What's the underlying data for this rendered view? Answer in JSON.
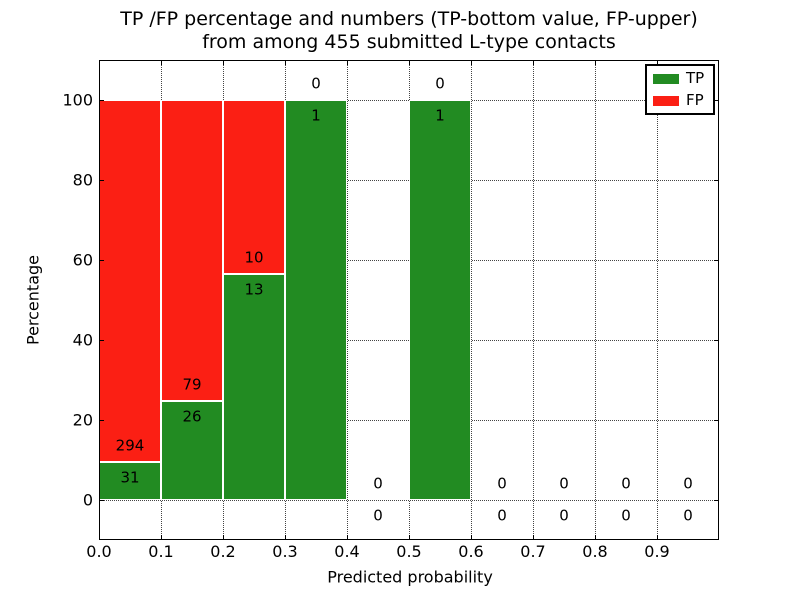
{
  "figure": {
    "title_line1": "TP /FP percentage and numbers (TP-bottom value, FP-upper)",
    "title_line2": "from among 455 submitted L-type contacts"
  },
  "axes": {
    "xlabel": "Predicted probability",
    "ylabel": "Percentage",
    "x_ticks": [
      "0.0",
      "0.1",
      "0.2",
      "0.3",
      "0.4",
      "0.5",
      "0.6",
      "0.7",
      "0.8",
      "0.9"
    ],
    "y_ticks": [
      "0",
      "20",
      "40",
      "60",
      "80",
      "100"
    ]
  },
  "legend": {
    "items": [
      {
        "label": "TP",
        "color": "#228b22"
      },
      {
        "label": "FP",
        "color": "#fb1f14"
      }
    ]
  },
  "chart_data": {
    "type": "bar",
    "stacked": true,
    "title": "TP /FP percentage and numbers (TP-bottom value, FP-upper) from among 455 submitted L-type contacts",
    "xlabel": "Predicted probability",
    "ylabel": "Percentage",
    "xlim": [
      0,
      1.0
    ],
    "ylim": [
      -10,
      110
    ],
    "grid": true,
    "legend_position": "upper right",
    "total_contacts": 455,
    "bin_width": 0.1,
    "bins_start": [
      0.0,
      0.1,
      0.2,
      0.3,
      0.4,
      0.5,
      0.6,
      0.7,
      0.8,
      0.9
    ],
    "series": [
      {
        "name": "TP",
        "color": "#228b22",
        "counts": [
          31,
          26,
          13,
          1,
          0,
          1,
          0,
          0,
          0,
          0
        ],
        "pct": [
          9.538,
          24.762,
          56.522,
          100,
          0,
          100,
          0,
          0,
          0,
          0
        ]
      },
      {
        "name": "FP",
        "color": "#fb1f14",
        "counts": [
          294,
          79,
          10,
          0,
          0,
          0,
          0,
          0,
          0,
          0
        ],
        "pct": [
          90.462,
          75.238,
          43.478,
          0,
          0,
          0,
          0,
          0,
          0,
          0
        ]
      }
    ]
  }
}
